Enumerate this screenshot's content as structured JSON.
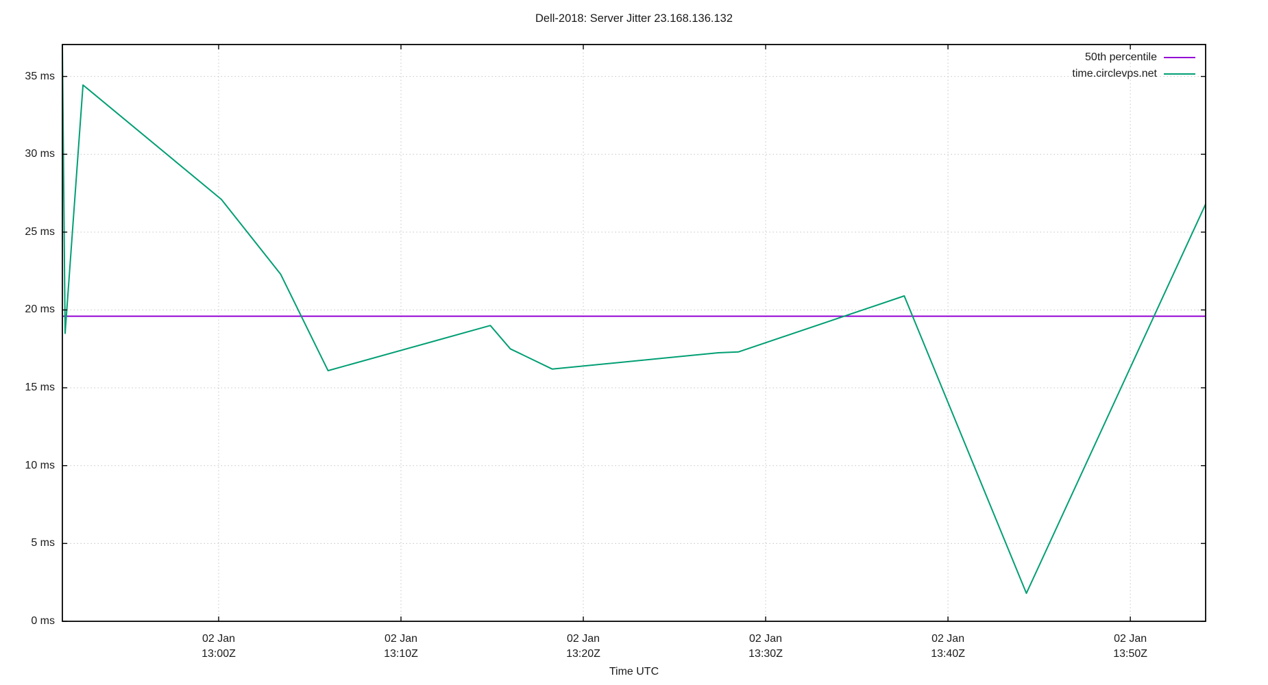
{
  "chart_data": {
    "type": "line",
    "title": "Dell-2018: Server Jitter 23.168.136.132",
    "xlabel": "Time UTC",
    "ylabel": "",
    "grid": true,
    "legend_position": "top-right-inside",
    "x_unit": "minutes relative to 02 Jan 13:00Z",
    "xlim": [
      -8.57,
      54.13
    ],
    "ylim": [
      0,
      37.05
    ],
    "yticks": [
      {
        "v": 0,
        "label": "0 ms"
      },
      {
        "v": 5,
        "label": "5 ms"
      },
      {
        "v": 10,
        "label": "10 ms"
      },
      {
        "v": 15,
        "label": "15 ms"
      },
      {
        "v": 20,
        "label": "20 ms"
      },
      {
        "v": 25,
        "label": "25 ms"
      },
      {
        "v": 30,
        "label": "30 ms"
      },
      {
        "v": 35,
        "label": "35 ms"
      }
    ],
    "xticks": [
      {
        "v": 0,
        "line1": "02 Jan",
        "line2": "13:00Z"
      },
      {
        "v": 10,
        "line1": "02 Jan",
        "line2": "13:10Z"
      },
      {
        "v": 20,
        "line1": "02 Jan",
        "line2": "13:20Z"
      },
      {
        "v": 30,
        "line1": "02 Jan",
        "line2": "13:30Z"
      },
      {
        "v": 40,
        "line1": "02 Jan",
        "line2": "13:40Z"
      },
      {
        "v": 50,
        "line1": "02 Jan",
        "line2": "13:50Z"
      }
    ],
    "series": [
      {
        "name": "50th percentile",
        "type": "hline",
        "color": "#9400d3",
        "value": 19.6
      },
      {
        "name": "time.circlevps.net",
        "type": "line",
        "color": "#009e73",
        "points": [
          [
            -8.57,
            37.05
          ],
          [
            -8.42,
            18.5
          ],
          [
            -7.44,
            34.45
          ],
          [
            0.15,
            27.1
          ],
          [
            3.4,
            22.3
          ],
          [
            6.0,
            16.1
          ],
          [
            14.9,
            19.0
          ],
          [
            16.0,
            17.5
          ],
          [
            18.3,
            16.2
          ],
          [
            27.4,
            17.25
          ],
          [
            28.5,
            17.3
          ],
          [
            37.6,
            20.9
          ],
          [
            44.3,
            1.8
          ],
          [
            54.13,
            26.8
          ]
        ]
      }
    ]
  }
}
